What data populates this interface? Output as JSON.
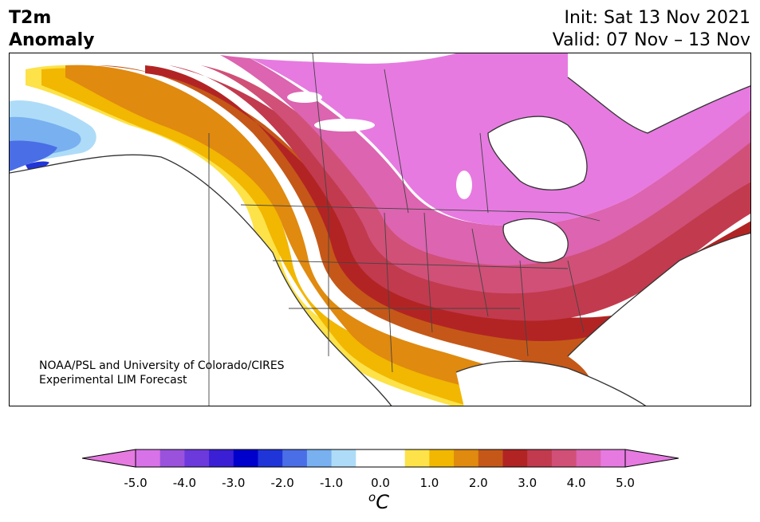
{
  "header": {
    "title_line1": "T2m",
    "title_line2": "Anomaly",
    "init": "Init: Sat 13 Nov 2021",
    "valid": "Valid: 07 Nov – 13 Nov"
  },
  "credit": {
    "line1": "NOAA/PSL and University of Colorado/CIRES",
    "line2": "Experimental LIM Forecast"
  },
  "colorbar": {
    "unit": "C",
    "unit_prefix": "o",
    "ticks": [
      "-5.0",
      "-4.0",
      "-3.0",
      "-2.0",
      "-1.0",
      "0.0",
      "1.0",
      "2.0",
      "3.0",
      "4.0",
      "5.0"
    ],
    "range": [
      -5.0,
      5.0
    ],
    "step": 0.5,
    "under_color": "#e67ae0",
    "over_color": "#e67ae0",
    "colors": [
      "#d872e8",
      "#9a52dd",
      "#6c39dc",
      "#3b1fd4",
      "#0000cc",
      "#2035d8",
      "#4a6ee6",
      "#78b0f0",
      "#aedcf8",
      "#ffffff",
      "#ffffff",
      "#fde249",
      "#f2b700",
      "#e08a10",
      "#c55818",
      "#b22424",
      "#c23a4e",
      "#d05078",
      "#dc64b0",
      "#e67ae0"
    ]
  },
  "map": {
    "region": "North America",
    "anomaly_colors": {
      "cold_pale": "#aedcf8",
      "cold_light": "#78b0f0",
      "cold_mid": "#4a6ee6",
      "cold_deep": "#2035d8",
      "warm_yellow": "#fde249",
      "warm_gold": "#f2b700",
      "warm_orange": "#e08a10",
      "warm_rust": "#c55818",
      "warm_red": "#b22424",
      "warm_crimson": "#c23a4e",
      "warm_rose": "#d05078",
      "warm_pink": "#dc64b0",
      "warm_magenta": "#e67ae0"
    }
  }
}
